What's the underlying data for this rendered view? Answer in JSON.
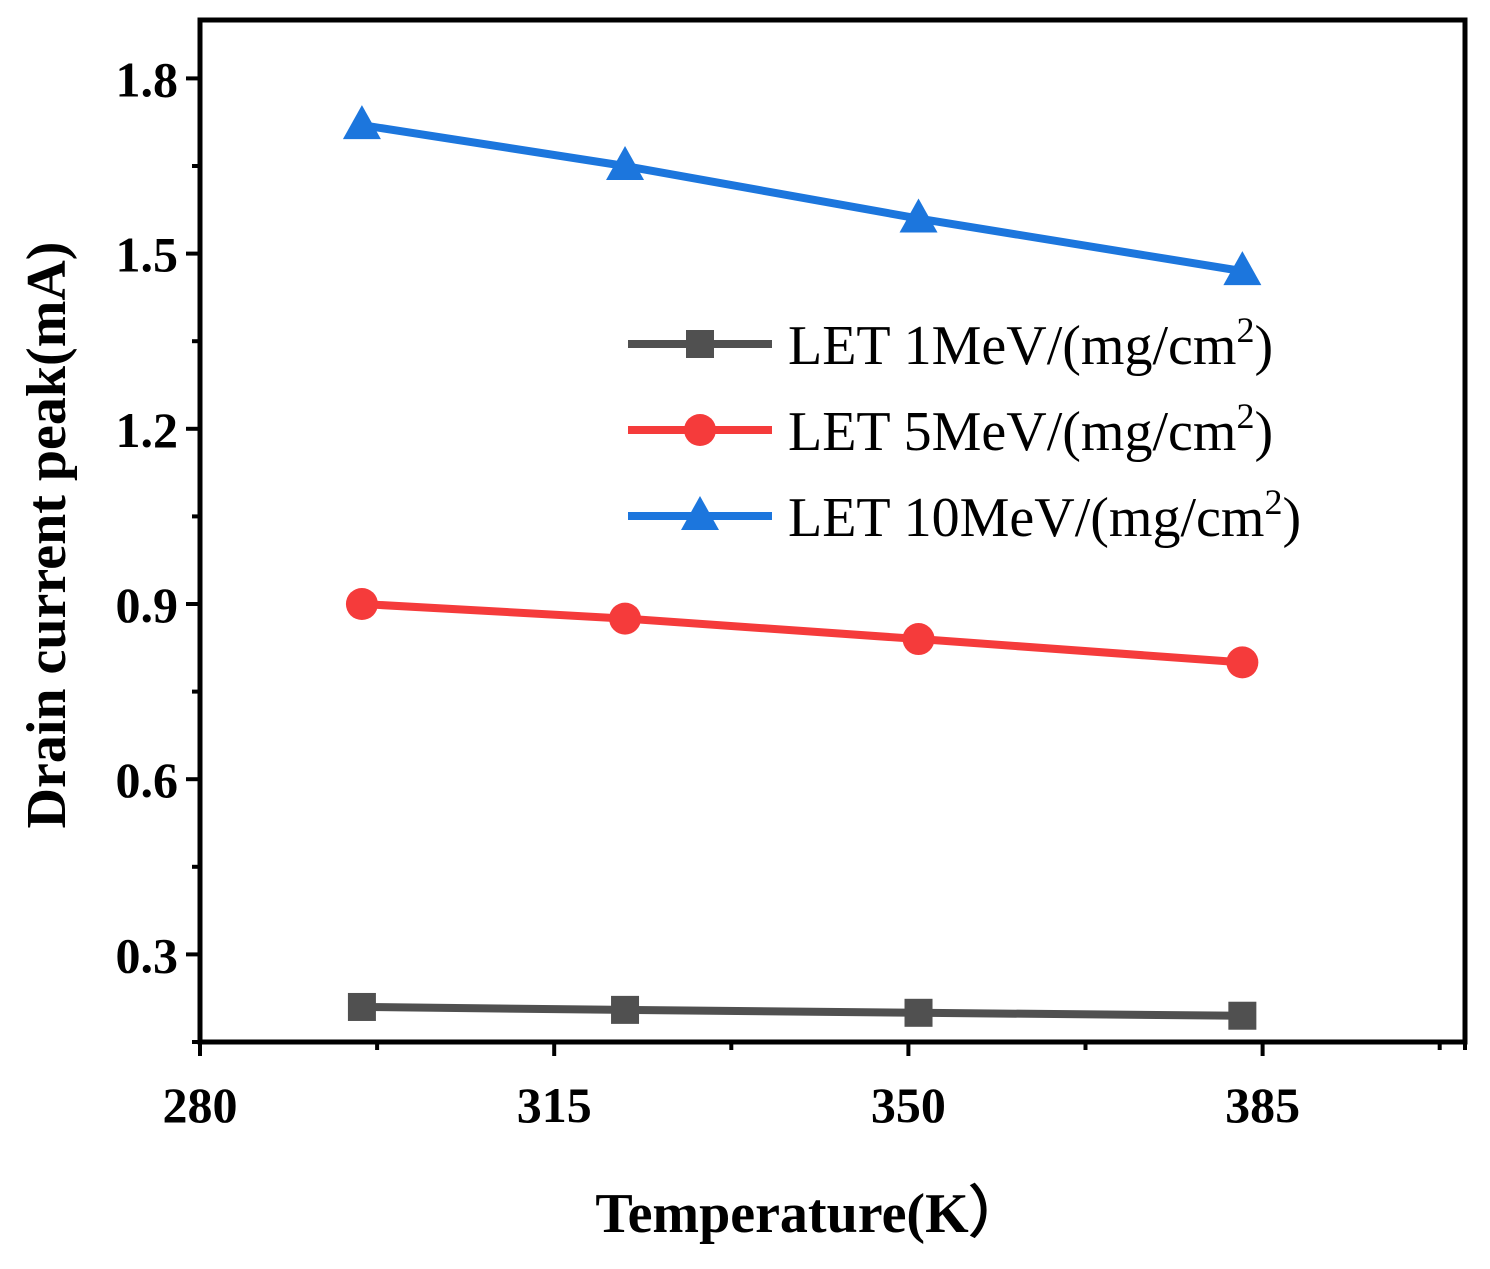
{
  "chart_data": {
    "type": "line",
    "title": "",
    "xlabel": "Temperature(K）",
    "ylabel": "Drain current peak(mA)",
    "xlim": [
      280,
      405
    ],
    "ylim": [
      0.15,
      1.9
    ],
    "xticks": [
      280,
      315,
      350,
      385
    ],
    "xtick_labels": [
      "280",
      "315",
      "350",
      "385"
    ],
    "yticks": [
      0.3,
      0.6,
      0.9,
      1.2,
      1.5,
      1.8
    ],
    "ytick_labels": [
      "0.3",
      "0.6",
      "0.9",
      "1.2",
      "1.5",
      "1.8"
    ],
    "grid": false,
    "legend_position": "center-right",
    "x": [
      296,
      322,
      351,
      383
    ],
    "series": [
      {
        "name": "LET 1MeV/(mg/cm2)",
        "legend_main": "LET 1MeV/(mg/cm",
        "legend_sup": "2",
        "legend_end": ")",
        "marker": "square",
        "color": "#505050",
        "values": [
          0.21,
          0.205,
          0.2,
          0.195
        ]
      },
      {
        "name": "LET 5MeV/(mg/cm2)",
        "legend_main": "LET 5MeV/(mg/cm",
        "legend_sup": "2",
        "legend_end": ")",
        "marker": "circle",
        "color": "#f53b3b",
        "values": [
          0.9,
          0.875,
          0.84,
          0.8
        ]
      },
      {
        "name": "LET 10MeV/(mg/cm2)",
        "legend_main": "LET 10MeV/(mg/cm",
        "legend_sup": "2",
        "legend_end": ")",
        "marker": "triangle",
        "color": "#1c76dd",
        "values": [
          1.72,
          1.65,
          1.56,
          1.47
        ]
      }
    ]
  }
}
